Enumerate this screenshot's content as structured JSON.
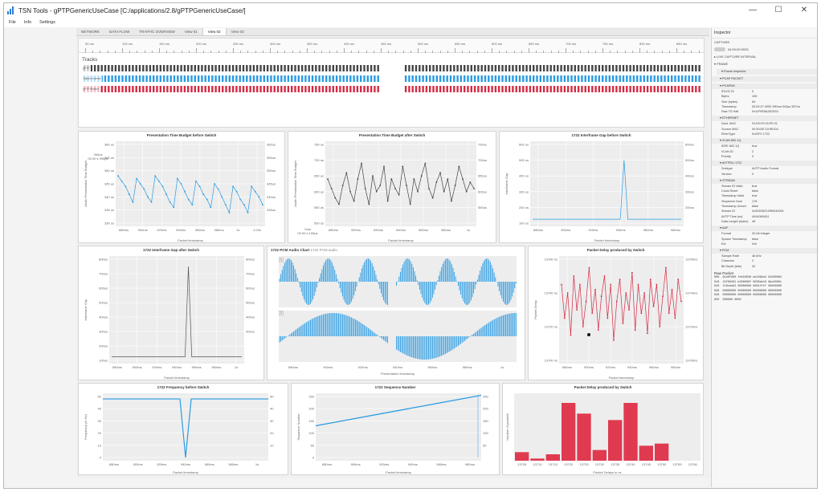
{
  "window": {
    "title": "TSN Tools - gPTPGenericUseCase [C:/applications/2.8/gPTPGenericUseCase/]",
    "controls": [
      "—",
      "☐",
      "✕"
    ]
  },
  "menu": [
    "File",
    "Info",
    "Settings"
  ],
  "tabs": [
    "NETWORK",
    "DATA FLOW",
    "TRAFFIC OVERVIEW",
    "View 01",
    "View 02",
    "View 03"
  ],
  "active_tab": 4,
  "timeline": {
    "ruler_labels": [
      "50 ms",
      "100 ms",
      "150 ms",
      "200 ms",
      "250 ms",
      "300 ms",
      "350 ms",
      "400 ms",
      "450 ms",
      "500 ms",
      "550 ms",
      "600 ms",
      "650 ms",
      "700 ms",
      "750 ms",
      "800 ms",
      "850 ms"
    ],
    "tracks_title": "Tracks",
    "tracks": [
      {
        "label": "gPTP",
        "color": "#444444"
      },
      {
        "label": "Talker/Listener",
        "color": "#2a9be3"
      },
      {
        "label": "gPTP/Switch",
        "color": "#d42b43"
      }
    ]
  },
  "panels": {
    "ptb_before": {
      "title": "Presentation Time Budget before Switch",
      "ylabel": "Audio Presentation Time Budget",
      "xlabel": "Packet timestamp",
      "yticks": [
        "360 us",
        "355 us",
        "350 us",
        "345 us",
        "340 us",
        "335 us",
        "330 us"
      ],
      "y2ticks": [
        "360us",
        "355us",
        "350us",
        "345us",
        "340us",
        "335us"
      ],
      "xticks": [
        "880ms",
        "900ms",
        "920ms",
        "940ms",
        "960ms",
        "980ms",
        "1s",
        "1.02s"
      ],
      "note": [
        "394us",
        "00.00 s 996ps"
      ],
      "color": "#2a9be3"
    },
    "ptb_after": {
      "title": "Presentation Time Budget after Switch",
      "ylabel": "Audio Presentation Time Budget",
      "xlabel": "Packet timestamp",
      "yticks": [
        "750 us",
        "700 us",
        "650 us",
        "600 us",
        "550 us",
        "500 us"
      ],
      "y2ticks": [
        "750us",
        "700us",
        "650us",
        "600us",
        "550us"
      ],
      "xticks": [
        "880ms",
        "900ms",
        "920ms",
        "940ms",
        "960ms",
        "980ms",
        "1s"
      ],
      "note": [
        "Xms",
        "00.00 s 100ps"
      ],
      "color": "#444444"
    },
    "gap_before": {
      "title": "1722 Interframe Gap before Switch",
      "ylabel": "Interframe Gap",
      "xlabel": "Packet timestamp",
      "yticks": [
        "600 us",
        "500 us",
        "400 us",
        "300 us",
        "200 us",
        "100 us"
      ],
      "y2ticks": [
        "600us",
        "500us",
        "400us",
        "300us",
        "200us"
      ],
      "xticks": [
        "880ms",
        "900ms",
        "920ms",
        "940ms",
        "960ms",
        "980ms"
      ],
      "color": "#2a9be3"
    },
    "gap_after": {
      "title": "1722 Interframe Gap after Switch",
      "ylabel": "Interframe Gap",
      "xlabel": "Packet timestamp",
      "yticks": [
        "800us",
        "700us",
        "600us",
        "500us",
        "400us",
        "300us",
        "200us",
        "100us"
      ],
      "y2ticks": [
        "800us",
        "700us",
        "600us",
        "500us",
        "400us",
        "300us"
      ],
      "xticks": [
        "880ms",
        "900ms",
        "920ms",
        "940ms",
        "960ms",
        "980ms",
        "1s"
      ],
      "color": "#555555"
    },
    "pcm": {
      "title": "1722 PCM Audio Chart",
      "subtitle": "1722 PCM audio",
      "xlabel": "Presentation timestamp",
      "xticks": [
        "880ms",
        "900ms",
        "920ms",
        "940ms",
        "960ms",
        "980ms",
        "1s"
      ],
      "ch1": "1",
      "ch2": "2",
      "color": "#2a9be3"
    },
    "delay_switch": {
      "title": "Packet Delay produced by Switch",
      "ylabel": "Packet Delay",
      "xlabel": "Packet timestamp",
      "yticks": [
        "13760 ns",
        "13740 ns",
        "13720 ns",
        "13700 ns"
      ],
      "y2ticks": [
        "13760ns",
        "13740ns",
        "13720ns",
        "13700ns"
      ],
      "xticks": [
        "880ms",
        "900ms",
        "920ms",
        "940ms",
        "960ms",
        "980ms"
      ],
      "color": "#d42b43"
    },
    "freq_before": {
      "title": "1722 Frequency before Switch",
      "ylabel": "Frequency (in Hz)",
      "xlabel": "Packet timestamp",
      "yticks": [
        "50",
        "40",
        "30",
        "20",
        "10",
        "0"
      ],
      "y2ticks": [
        "50",
        "40",
        "30",
        "20",
        "10"
      ],
      "xticks": [
        "880ms",
        "900ms",
        "920ms",
        "940ms",
        "960ms",
        "980ms",
        "1s"
      ],
      "color": "#2a9be3"
    },
    "seq": {
      "title": "1722 Sequence Number",
      "ylabel": "Sequence Number",
      "xlabel": "Packet timestamp",
      "yticks": [
        "250",
        "200",
        "150",
        "100",
        "50",
        "0"
      ],
      "y2ticks": [
        "250",
        "200",
        "150",
        "100",
        "50"
      ],
      "xticks": [
        "880ms",
        "900ms",
        "920ms",
        "940ms",
        "960ms",
        "980ms"
      ],
      "color": "#2a9be3"
    },
    "delay_hist": {
      "title": "Packet Delay produced by Switch",
      "ylabel": "Number of packets",
      "xlabel": "Packet Delays in ns",
      "xticks": [
        "13705",
        "13710",
        "13715",
        "13720",
        "13725",
        "13730",
        "13735",
        "13740",
        "13745",
        "13750",
        "13755",
        "13760"
      ],
      "color": "#e03a50"
    }
  },
  "chart_data": [
    {
      "type": "line",
      "title": "Presentation Time Budget before Switch",
      "ylabel": "Audio Presentation Time Budget",
      "xlabel": "Packet timestamp",
      "ylim": [
        330,
        360
      ],
      "series": [
        {
          "values": [
            348,
            346,
            344,
            341,
            338,
            347,
            345,
            343,
            340,
            338,
            348,
            346,
            344,
            341,
            338,
            336,
            347,
            345,
            342,
            339,
            337,
            346,
            344,
            341,
            339,
            336,
            345,
            343,
            340,
            337,
            334,
            344,
            342,
            339,
            337,
            334,
            344,
            342,
            340,
            337
          ]
        }
      ]
    },
    {
      "type": "line",
      "title": "Presentation Time Budget after Switch",
      "ylabel": "Audio Presentation Time Budget",
      "xlabel": "Packet timestamp",
      "ylim": [
        500,
        750
      ],
      "series": [
        {
          "values": [
            640,
            610,
            580,
            560,
            620,
            660,
            600,
            570,
            640,
            690,
            610,
            560,
            650,
            600,
            620,
            680,
            570,
            640,
            610,
            590,
            680,
            620,
            560,
            640,
            600,
            650,
            690,
            610,
            580,
            630,
            660,
            600,
            640,
            570,
            620,
            680,
            640,
            600,
            630,
            610
          ]
        }
      ]
    },
    {
      "type": "line",
      "title": "1722 Interframe Gap before Switch",
      "ylabel": "Interframe Gap",
      "xlabel": "Packet timestamp",
      "ylim": [
        100,
        600
      ],
      "series": [
        {
          "values": [
            125,
            125,
            125,
            125,
            125,
            125,
            125,
            125,
            125,
            125,
            125,
            125,
            125,
            125,
            125,
            125,
            125,
            125,
            125,
            125,
            125,
            125,
            125,
            125,
            500,
            125,
            125,
            125,
            125,
            125,
            125,
            125,
            125,
            125,
            125,
            125,
            125,
            125,
            125,
            125
          ]
        }
      ]
    },
    {
      "type": "line",
      "title": "1722 Interframe Gap after Switch",
      "ylabel": "Interframe Gap",
      "xlabel": "Packet timestamp",
      "ylim": [
        100,
        800
      ],
      "series": [
        {
          "values": [
            125,
            125,
            125,
            125,
            125,
            125,
            125,
            125,
            125,
            125,
            125,
            125,
            125,
            125,
            125,
            125,
            125,
            125,
            125,
            125,
            125,
            125,
            125,
            750,
            125,
            125,
            125,
            125,
            125,
            125,
            125,
            125,
            125,
            125,
            125,
            125,
            125,
            125,
            125,
            125
          ]
        }
      ]
    },
    {
      "type": "line",
      "title": "Packet Delay produced by Switch",
      "ylabel": "Packet Delay",
      "xlabel": "Packet timestamp",
      "ylim": [
        13700,
        13760
      ],
      "series": [
        {
          "values": [
            13745,
            13725,
            13740,
            13715,
            13750,
            13730,
            13745,
            13720,
            13735,
            13755,
            13728,
            13742,
            13718,
            13738,
            13750,
            13725,
            13745,
            13712,
            13735,
            13748,
            13722,
            13740,
            13730,
            13752,
            13718,
            13745,
            13728,
            13740,
            13716,
            13748,
            13732,
            13745,
            13720,
            13738,
            13755,
            13728,
            13742,
            13725,
            13748,
            13735
          ]
        }
      ]
    },
    {
      "type": "line",
      "title": "1722 Frequency before Switch",
      "ylabel": "Frequency (in Hz)",
      "xlabel": "Packet timestamp",
      "ylim": [
        0,
        50
      ],
      "series": [
        {
          "values": [
            48,
            48,
            48,
            48,
            48,
            48,
            48,
            48,
            48,
            48,
            48,
            48,
            48,
            48,
            48,
            48,
            48,
            48,
            48,
            48,
            48,
            48,
            48,
            48,
            48,
            48,
            48,
            48,
            48,
            48,
            48,
            48,
            48,
            48,
            48,
            48,
            48,
            48,
            48,
            48,
            48,
            48,
            48,
            48,
            48,
            48,
            48,
            48,
            48,
            48,
            48,
            48,
            48,
            48,
            48,
            48,
            48,
            48,
            48,
            48,
            48,
            48,
            48,
            48,
            48,
            48,
            48,
            48,
            48,
            48,
            48,
            48,
            48,
            48,
            48,
            48,
            48,
            48,
            48,
            48,
            48,
            48,
            48,
            48,
            48,
            48,
            48,
            48,
            48,
            48,
            48,
            48,
            48,
            48,
            48,
            48,
            48,
            48,
            48,
            48,
            48,
            48,
            48,
            48,
            48,
            48,
            48,
            48,
            48,
            48,
            48,
            48,
            48,
            48,
            48,
            48,
            48,
            48,
            48,
            48,
            48,
            48,
            48,
            48,
            48,
            48,
            48,
            48,
            48,
            48,
            48,
            48,
            48,
            48,
            48,
            48,
            48,
            48,
            48,
            48,
            48,
            48,
            48,
            48,
            48,
            48,
            48,
            48,
            48,
            48,
            48,
            48,
            48,
            48,
            48,
            48,
            48,
            48,
            48,
            48,
            48,
            48,
            48,
            48,
            48,
            48,
            48,
            48,
            48,
            48,
            48,
            48,
            48,
            48,
            48,
            48,
            48,
            48,
            48,
            48,
            48,
            48,
            48,
            48,
            48,
            48,
            48,
            48,
            48,
            48,
            48,
            48,
            48,
            48,
            48,
            48,
            48,
            48,
            48,
            48
          ]
        }
      ]
    },
    {
      "type": "line",
      "title": "1722 Sequence Number",
      "ylabel": "Sequence Number",
      "xlabel": "Packet timestamp",
      "ylim": [
        0,
        250
      ],
      "series": [
        {
          "values": [
            130,
            255
          ]
        }
      ]
    },
    {
      "type": "bar",
      "title": "Packet Delay produced by Switch",
      "ylabel": "Number of packets",
      "xlabel": "Packet Delays in ns",
      "categories": [
        "13705",
        "13710",
        "13715",
        "13720",
        "13725",
        "13730",
        "13735",
        "13740",
        "13745",
        "13750",
        "13755",
        "13760"
      ],
      "values": [
        4,
        1,
        3,
        27,
        22,
        5,
        19,
        27,
        7,
        8,
        0,
        0
      ],
      "ylim": [
        0,
        30
      ]
    }
  ],
  "inspector": {
    "title": "Inspector",
    "capture_label": "CAPTURE",
    "capture_value": "04:00:00.0025",
    "sections": [
      "LIVE CAPTURE INTERVAL",
      "FRAME"
    ],
    "frame_label": "Frame Inspector",
    "groups": [
      {
        "name": "PCAP PACKET",
        "rows": []
      },
      {
        "name": "PCAPNG",
        "rows": [
          [
            "IFACE ID",
            "0"
          ],
          [
            "Bytes",
            "105"
          ],
          [
            "Size (bytes)",
            "84"
          ],
          [
            "Timestamp",
            "00:00:27.0000 990ms 942µs 957ns"
          ],
          [
            "Raw TS Half",
            "0x11F9E8A3D2E01"
          ]
        ]
      },
      {
        "name": "ETHERNET",
        "rows": [
          [
            "Dest. MAC",
            "91:E0:F0:00:FE:01"
          ],
          [
            "Source MAC",
            "00:30:DE:10:9B:D4"
          ],
          [
            "EtherType",
            "0x22F0 1722"
          ]
        ]
      },
      {
        "name": "VLAN 802.1Q",
        "rows": [
          [
            "IEEE 802.1Q",
            "true"
          ],
          [
            "VLAN ID",
            "2"
          ],
          [
            "Priority",
            "3"
          ]
        ]
      },
      {
        "name": "AVTPDU 1722",
        "rows": [
          [
            "Subtype",
            "AVTP Audio Format"
          ],
          [
            "Version",
            "0"
          ]
        ]
      },
      {
        "name": "STREAM",
        "rows": [
          [
            "Stream ID Valid",
            "true"
          ],
          [
            "Clock Reset",
            "false"
          ],
          [
            "Timestamp Valid",
            "true"
          ],
          [
            "Sequence Num",
            "178"
          ],
          [
            "Timestamp Uncert",
            "false"
          ],
          [
            "Stream ID",
            "0x0030DE109BD40001"
          ],
          [
            "AVTP Time (ns)",
            "4044069424"
          ],
          [
            "Data Length (bytes)",
            "48"
          ]
        ]
      },
      {
        "name": "AAF",
        "rows": [
          [
            "Format",
            "32-bit Integer"
          ],
          [
            "Sparse Timestamp",
            "false"
          ],
          [
            "Evt",
            "0x0"
          ]
        ]
      },
      {
        "name": "PCM",
        "rows": [
          [
            "Sample Rate",
            "48 kHz"
          ],
          [
            "Channels",
            "2"
          ],
          [
            "Bit Depth (bits)",
            "32"
          ]
        ]
      }
    ],
    "raw_title": "Raw Packet",
    "raw_lines": [
      "000  91e0f000 fe010030 de109bd4 81000064",
      "010  22f00281 b200009f 0030de10 9bd40001",
      "020  f10cbe92 00000000 0001ffff 00000000",
      "030  00000000 00000000 00000000 00000000",
      "040  00000000 00000000 00000000 00000000",
      "050  000000 0000"
    ]
  }
}
